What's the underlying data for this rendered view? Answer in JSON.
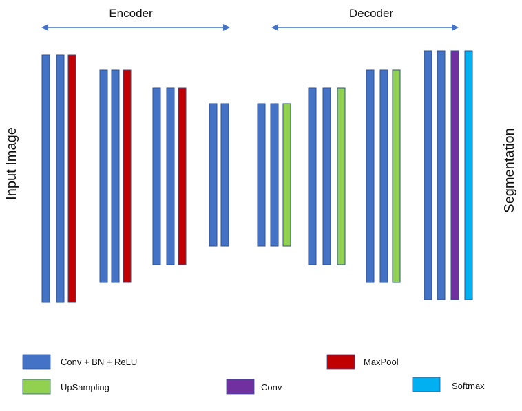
{
  "sections": {
    "encoder_label": "Encoder",
    "decoder_label": "Decoder"
  },
  "side_labels": {
    "input": "Input Image",
    "output": "Segmentation"
  },
  "colors": {
    "conv_bn_relu": "#4472C4",
    "maxpool": "#C00000",
    "upsampling": "#92D050",
    "conv": "#7030A0",
    "softmax": "#00B0F0",
    "stroke": "#2F528F",
    "arrow": "#4472C4"
  },
  "legend": [
    {
      "key": "conv_bn_relu",
      "label": "Conv + BN + ReLU"
    },
    {
      "key": "maxpool",
      "label": "MaxPool"
    },
    {
      "key": "upsampling",
      "label": "UpSampling"
    },
    {
      "key": "conv",
      "label": "Conv"
    },
    {
      "key": "softmax",
      "label": "Softmax"
    }
  ],
  "stages": [
    {
      "part": "encoder",
      "layers": [
        "conv_bn_relu",
        "conv_bn_relu",
        "maxpool"
      ]
    },
    {
      "part": "encoder",
      "layers": [
        "conv_bn_relu",
        "conv_bn_relu",
        "maxpool"
      ]
    },
    {
      "part": "encoder",
      "layers": [
        "conv_bn_relu",
        "conv_bn_relu",
        "maxpool"
      ]
    },
    {
      "part": "encoder",
      "layers": [
        "conv_bn_relu",
        "conv_bn_relu"
      ]
    },
    {
      "part": "decoder",
      "layers": [
        "conv_bn_relu",
        "conv_bn_relu",
        "upsampling"
      ]
    },
    {
      "part": "decoder",
      "layers": [
        "conv_bn_relu",
        "conv_bn_relu",
        "upsampling"
      ]
    },
    {
      "part": "decoder",
      "layers": [
        "conv_bn_relu",
        "conv_bn_relu",
        "upsampling"
      ]
    },
    {
      "part": "decoder",
      "layers": [
        "conv_bn_relu",
        "conv_bn_relu",
        "conv",
        "softmax"
      ]
    }
  ]
}
